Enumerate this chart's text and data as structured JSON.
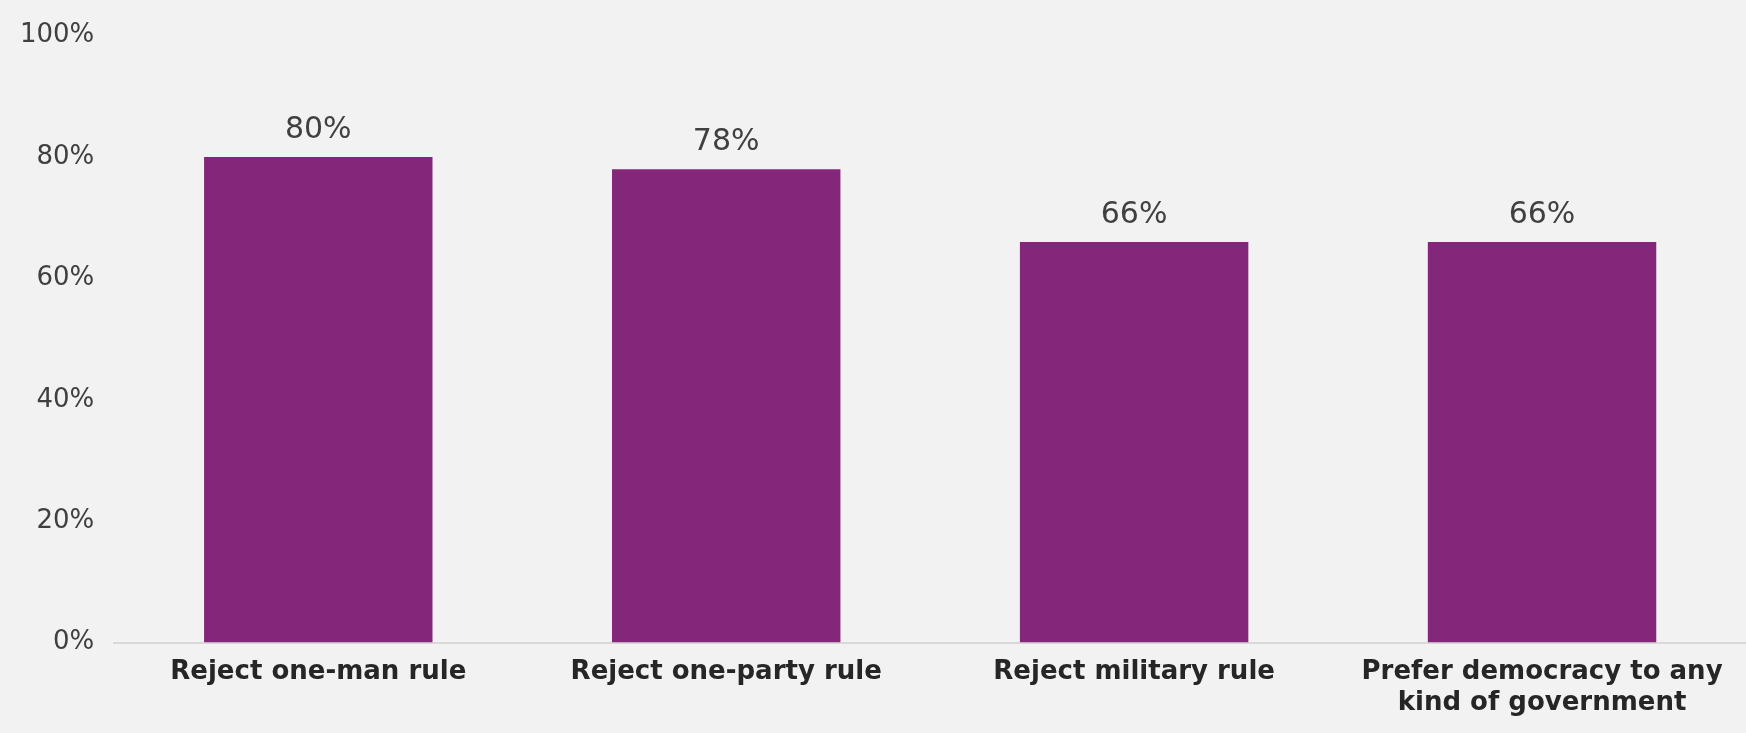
{
  "chart_data": {
    "type": "bar",
    "categories": [
      "Reject one-man rule",
      "Reject one-party rule",
      "Reject military rule",
      "Prefer democracy to any kind of government"
    ],
    "values": [
      80,
      78,
      66,
      66
    ],
    "color": "#84277a",
    "value_labels": [
      "80%",
      "78%",
      "66%",
      "66%"
    ],
    "ylim": [
      0,
      100
    ],
    "yticks": [
      {
        "value": 0,
        "label": "0%"
      },
      {
        "value": 20,
        "label": "20%"
      },
      {
        "value": 40,
        "label": "40%"
      },
      {
        "value": 60,
        "label": "60%"
      },
      {
        "value": 80,
        "label": "80%"
      },
      {
        "value": 100,
        "label": "100%"
      }
    ],
    "grid": false,
    "legend": false
  }
}
